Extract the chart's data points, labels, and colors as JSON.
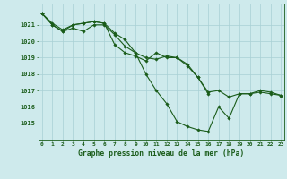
{
  "title": "Graphe pression niveau de la mer (hPa)",
  "background_color": "#ceeaec",
  "grid_color": "#a8d0d4",
  "line_color": "#1a5c1a",
  "x_ticks": [
    0,
    1,
    2,
    3,
    4,
    5,
    6,
    7,
    8,
    9,
    10,
    11,
    12,
    13,
    14,
    15,
    16,
    17,
    18,
    19,
    20,
    21,
    22,
    23
  ],
  "ylim": [
    1014.0,
    1022.3
  ],
  "y_ticks": [
    1015,
    1016,
    1017,
    1018,
    1019,
    1020,
    1021
  ],
  "series": [
    [
      1021.7,
      1021.1,
      1020.7,
      1021.0,
      1021.1,
      1021.2,
      1021.1,
      1020.5,
      1020.1,
      1019.3,
      1018.0,
      1017.0,
      1016.2,
      1015.1,
      1014.8,
      1014.6,
      1014.5,
      1016.0,
      1015.3,
      1016.8,
      1016.8,
      1017.0,
      1016.9,
      1016.7
    ],
    [
      1021.7,
      1021.0,
      1020.6,
      1020.8,
      1020.6,
      1021.0,
      1021.0,
      1020.4,
      1019.7,
      1019.3,
      1019.0,
      1018.9,
      1019.1,
      1019.0,
      1018.6,
      1017.8,
      1016.9,
      1017.0,
      1016.6,
      1016.8,
      1016.8,
      1016.9,
      1016.8,
      1016.7
    ],
    [
      1021.7,
      1021.0,
      1020.6,
      1021.0,
      1021.1,
      1021.2,
      1021.1,
      1019.8,
      1019.3,
      1019.1,
      1018.8,
      1019.3,
      1019.0,
      1019.0,
      1018.5,
      1017.8,
      1016.8,
      null,
      null,
      null,
      null,
      null,
      null,
      null
    ]
  ]
}
